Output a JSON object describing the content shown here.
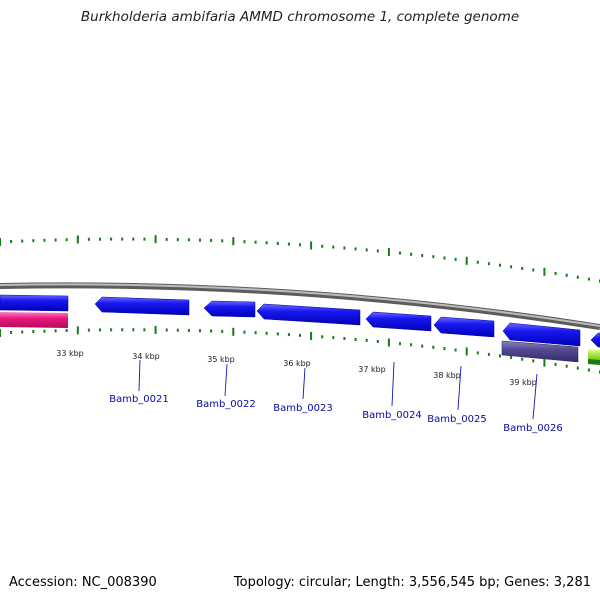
{
  "title": "Burkholderia ambifaria AMMD chromosome 1, complete genome",
  "footer": {
    "accession": "Accession: NC_008390",
    "topology": "Topology: circular; Length: 3,556,545 bp; Genes: 3,281"
  },
  "colors": {
    "forward_gene": "#1010e6",
    "gene_pink": "#e0187a",
    "gene_purple": "#50468c",
    "gene_green": "#9be02a",
    "backbone": "#888888",
    "ticks": "#1a7a1a",
    "label": "#0a0aa0"
  },
  "scale_labels": [
    "33 kbp",
    "34 kbp",
    "35 kbp",
    "36 kbp",
    "37 kbp",
    "38 kbp",
    "39 kbp"
  ],
  "gene_labels": [
    "Bamb_0021",
    "Bamb_0022",
    "Bamb_0023",
    "Bamb_0024",
    "Bamb_0025",
    "Bamb_0026"
  ]
}
